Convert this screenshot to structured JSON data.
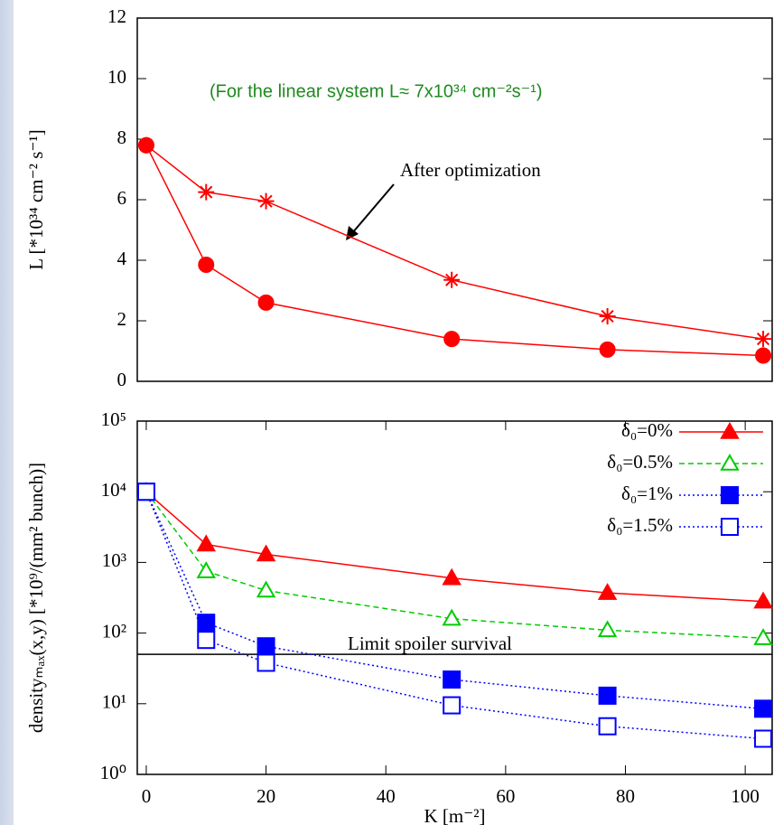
{
  "chart_data": [
    {
      "type": "line",
      "ylabel": "L [*10³⁴ cm⁻² s⁻¹]",
      "annotations": [
        "(For the linear system L≈ 7x10³⁴ cm⁻²s⁻¹)",
        "After optimization"
      ],
      "x": [
        0,
        10,
        20,
        51,
        77,
        103
      ],
      "xlim": [
        -1.5,
        104.5
      ],
      "ylim": [
        0,
        12
      ],
      "yticks": [
        0,
        2,
        4,
        6,
        8,
        10,
        12
      ],
      "series": [
        {
          "color": "#ff0000",
          "marker": "star",
          "values": [
            7.8,
            6.25,
            5.95,
            3.35,
            2.15,
            1.4
          ]
        },
        {
          "color": "#ff0000",
          "marker": "circle",
          "values": [
            7.8,
            3.85,
            2.6,
            1.4,
            1.05,
            0.85
          ]
        }
      ]
    },
    {
      "type": "line",
      "xlabel": "K [m⁻²]",
      "ylabel": "densityₘₐₓ(x,y) [*10⁹/(mm² bunch)]",
      "log_y": true,
      "legend": "upper right",
      "x": [
        0,
        10,
        20,
        51,
        77,
        103
      ],
      "xlim": [
        -1.5,
        104.5
      ],
      "xticks": [
        0,
        20,
        40,
        60,
        80,
        100
      ],
      "ylim": [
        1,
        100000
      ],
      "yticks": [
        {
          "value": 1,
          "label": "10⁰"
        },
        {
          "value": 10,
          "label": "10¹"
        },
        {
          "value": 100,
          "label": "10²"
        },
        {
          "value": 1000,
          "label": "10³"
        },
        {
          "value": 10000,
          "label": "10⁴"
        },
        {
          "value": 100000,
          "label": "10⁵"
        }
      ],
      "hline": {
        "value": 50,
        "label": "Limit spoiler survival"
      },
      "series": [
        {
          "name": "δ₀=0%",
          "color": "#ff0000",
          "marker": "triangle",
          "linestyle": "solid",
          "values": [
            10000,
            1800,
            1300,
            600,
            370,
            280
          ]
        },
        {
          "name": "δ₀=0.5%",
          "color": "#00cc00",
          "marker": "open-triangle",
          "linestyle": "dashed",
          "values": [
            10000,
            750,
            400,
            160,
            110,
            85
          ]
        },
        {
          "name": "δ₀=1%",
          "color": "#0000ff",
          "marker": "square",
          "linestyle": "dotted",
          "values": [
            10000,
            140,
            65,
            22,
            13,
            8.5
          ]
        },
        {
          "name": "δ₀=1.5%",
          "color": "#0000ff",
          "marker": "open-square",
          "linestyle": "dotted",
          "values": [
            10000,
            80,
            38,
            9.5,
            4.8,
            3.2
          ]
        }
      ]
    }
  ]
}
